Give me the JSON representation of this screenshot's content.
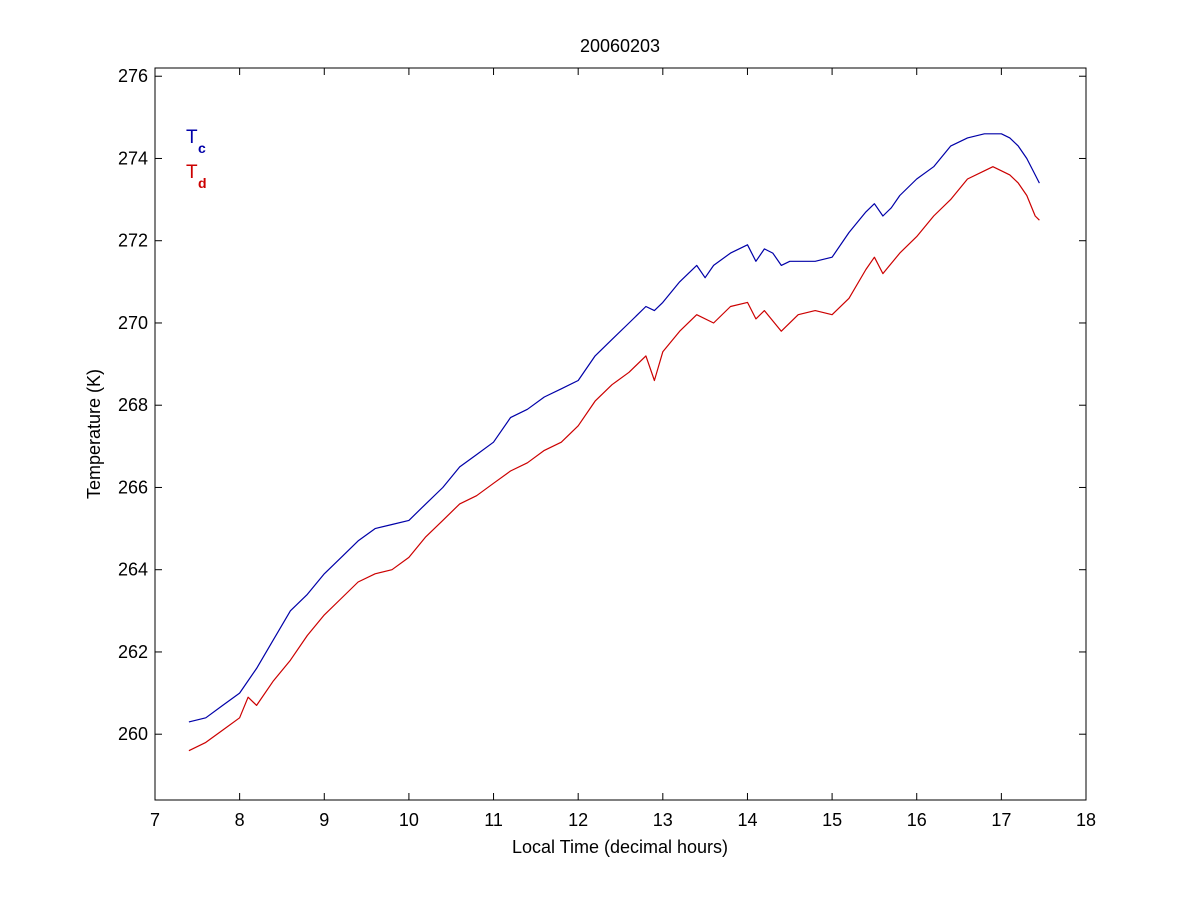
{
  "chart_data": {
    "type": "line",
    "title": "20060203",
    "xlabel": "Local Time (decimal hours)",
    "ylabel": "Temperature (K)",
    "xlim": [
      7,
      18
    ],
    "ylim": [
      258.4,
      276.2
    ],
    "xticks": [
      7,
      8,
      9,
      10,
      11,
      12,
      13,
      14,
      15,
      16,
      17,
      18
    ],
    "yticks": [
      260,
      262,
      264,
      266,
      268,
      270,
      272,
      274,
      276
    ],
    "grid": false,
    "legend": {
      "placement": "top-left"
    },
    "series": [
      {
        "name": "T",
        "subscript": "c",
        "color": "#0000a8",
        "x": [
          7.4,
          7.6,
          7.8,
          8.0,
          8.2,
          8.4,
          8.6,
          8.8,
          9.0,
          9.2,
          9.4,
          9.6,
          9.8,
          10.0,
          10.2,
          10.4,
          10.6,
          10.8,
          11.0,
          11.2,
          11.4,
          11.6,
          11.8,
          12.0,
          12.2,
          12.4,
          12.6,
          12.8,
          12.9,
          13.0,
          13.2,
          13.4,
          13.5,
          13.6,
          13.8,
          14.0,
          14.1,
          14.2,
          14.3,
          14.4,
          14.5,
          14.6,
          14.8,
          15.0,
          15.2,
          15.4,
          15.5,
          15.6,
          15.7,
          15.8,
          16.0,
          16.2,
          16.4,
          16.6,
          16.8,
          16.9,
          17.0,
          17.1,
          17.2,
          17.3,
          17.4,
          17.45
        ],
        "y": [
          260.3,
          260.4,
          260.7,
          261.0,
          261.6,
          262.3,
          263.0,
          263.4,
          263.9,
          264.3,
          264.7,
          265.0,
          265.1,
          265.2,
          265.6,
          266.0,
          266.5,
          266.8,
          267.1,
          267.7,
          267.9,
          268.2,
          268.4,
          268.6,
          269.2,
          269.6,
          270.0,
          270.4,
          270.3,
          270.5,
          271.0,
          271.4,
          271.1,
          271.4,
          271.7,
          271.9,
          271.5,
          271.8,
          271.7,
          271.4,
          271.5,
          271.5,
          271.5,
          271.6,
          272.2,
          272.7,
          272.9,
          272.6,
          272.8,
          273.1,
          273.5,
          273.8,
          274.3,
          274.5,
          274.6,
          274.6,
          274.6,
          274.5,
          274.3,
          274.0,
          273.6,
          273.4
        ]
      },
      {
        "name": "T",
        "subscript": "d",
        "color": "#cc0000",
        "x": [
          7.4,
          7.6,
          7.8,
          8.0,
          8.1,
          8.2,
          8.4,
          8.6,
          8.8,
          9.0,
          9.2,
          9.4,
          9.6,
          9.8,
          10.0,
          10.2,
          10.4,
          10.6,
          10.8,
          11.0,
          11.2,
          11.4,
          11.6,
          11.8,
          12.0,
          12.2,
          12.4,
          12.6,
          12.8,
          12.9,
          13.0,
          13.2,
          13.4,
          13.6,
          13.8,
          14.0,
          14.1,
          14.2,
          14.4,
          14.6,
          14.8,
          15.0,
          15.2,
          15.4,
          15.5,
          15.6,
          15.8,
          16.0,
          16.2,
          16.4,
          16.6,
          16.8,
          16.9,
          17.0,
          17.1,
          17.2,
          17.3,
          17.4,
          17.45
        ],
        "y": [
          259.6,
          259.8,
          260.1,
          260.4,
          260.9,
          260.7,
          261.3,
          261.8,
          262.4,
          262.9,
          263.3,
          263.7,
          263.9,
          264.0,
          264.3,
          264.8,
          265.2,
          265.6,
          265.8,
          266.1,
          266.4,
          266.6,
          266.9,
          267.1,
          267.5,
          268.1,
          268.5,
          268.8,
          269.2,
          268.6,
          269.3,
          269.8,
          270.2,
          270.0,
          270.4,
          270.5,
          270.1,
          270.3,
          269.8,
          270.2,
          270.3,
          270.2,
          270.6,
          271.3,
          271.6,
          271.2,
          271.7,
          272.1,
          272.6,
          273.0,
          273.5,
          273.7,
          273.8,
          273.7,
          273.6,
          273.4,
          273.1,
          272.6,
          272.5
        ]
      }
    ]
  }
}
